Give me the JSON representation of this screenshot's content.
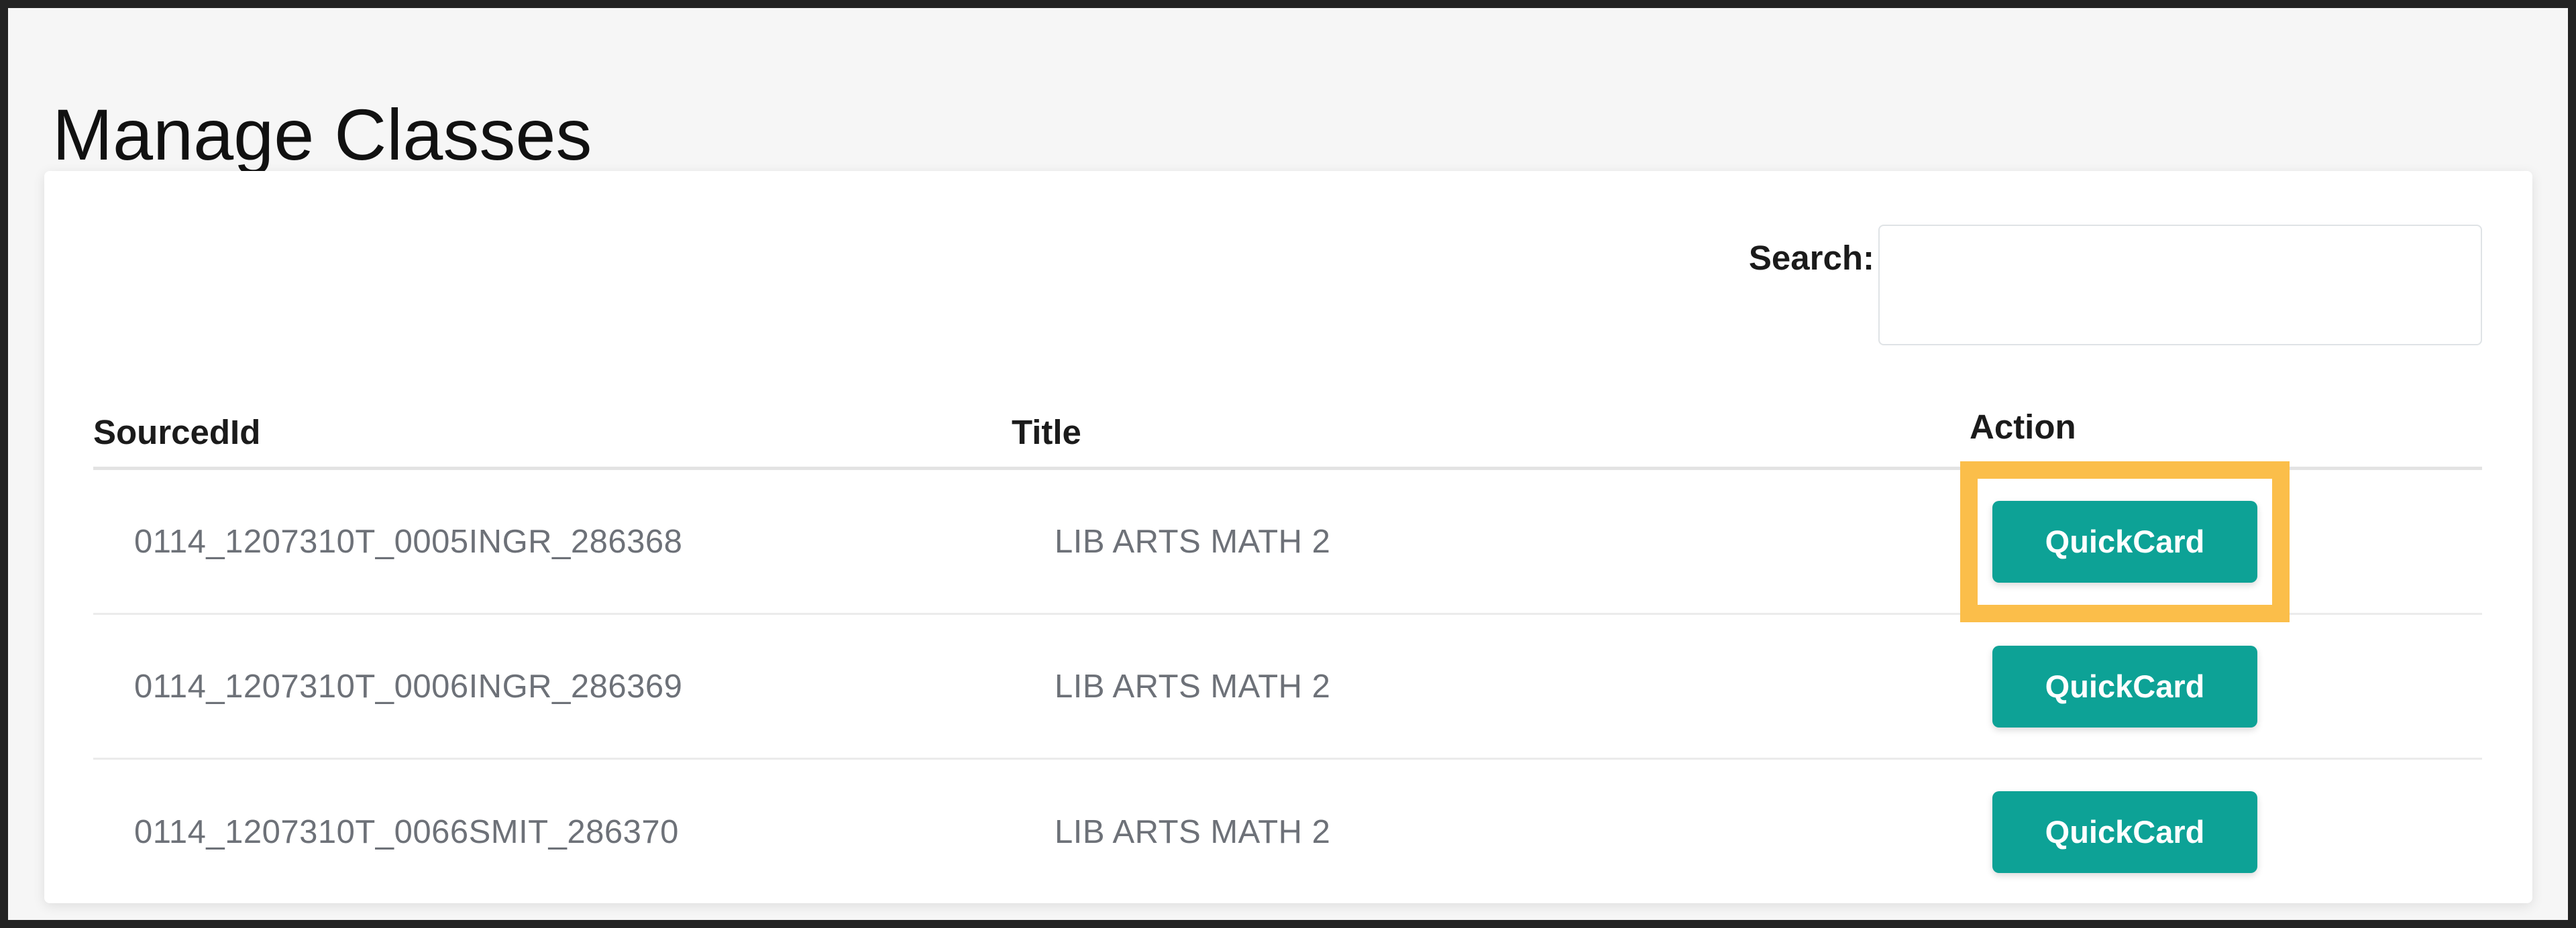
{
  "page": {
    "title": "Manage Classes"
  },
  "search": {
    "label": "Search:",
    "value": "",
    "placeholder": ""
  },
  "table": {
    "columns": [
      "SourcedId",
      "Title",
      "Action"
    ],
    "rows": [
      {
        "sourcedId": "0114_1207310T_0005INGR_286368",
        "title": "LIB ARTS MATH 2",
        "action": "QuickCard",
        "highlighted": true
      },
      {
        "sourcedId": "0114_1207310T_0006INGR_286369",
        "title": "LIB ARTS MATH 2",
        "action": "QuickCard",
        "highlighted": false
      },
      {
        "sourcedId": "0114_1207310T_0066SMIT_286370",
        "title": "LIB ARTS MATH 2",
        "action": "QuickCard",
        "highlighted": false
      }
    ]
  },
  "colors": {
    "button_teal": "#0da296",
    "highlight_orange": "#fbbe4a",
    "cell_text_gray": "#6d7178",
    "background_gray": "#f6f6f6",
    "frame_dark": "#232323"
  }
}
